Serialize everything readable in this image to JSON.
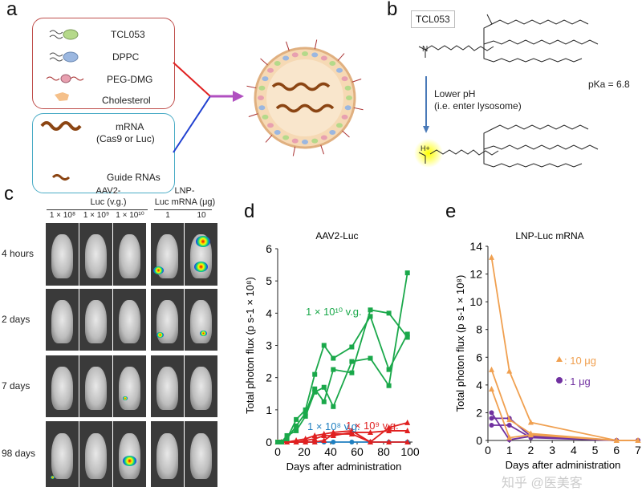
{
  "panels": {
    "a": {
      "label": "a",
      "components": [
        {
          "name": "TCL053",
          "icon": "lipid-green-icon"
        },
        {
          "name": "DPPC",
          "icon": "lipid-blue-icon"
        },
        {
          "name": "PEG-DMG",
          "icon": "lipid-pink-icon"
        },
        {
          "name": "Cholesterol",
          "icon": "cholesterol-icon"
        }
      ],
      "cargo": [
        {
          "name": "mRNA",
          "sub": "(Cas9 or Luc)"
        },
        {
          "name": "Guide RNAs"
        }
      ],
      "colors": {
        "lipid_box": "#c0504d",
        "cargo_box": "#4bacc6",
        "arrow": "#b04fc0"
      }
    },
    "b": {
      "label": "b",
      "compound": "TCL053",
      "condition_line1": "Lower pH",
      "condition_line2": "(i.e. enter lysosome)",
      "pka": "pKa = 6.8",
      "amine": "N",
      "protonated": "H+"
    },
    "c": {
      "label": "c",
      "group1_line1": "AAV2-",
      "group1_line2": "Luc (v.g.)",
      "group2_line1": "LNP-",
      "group2_line2": "Luc mRNA (μg)",
      "columns": [
        "1 × 10⁸",
        "1 × 10⁹",
        "1 × 10¹⁰",
        "1",
        "10"
      ],
      "rows": [
        "4 hours",
        "2 days",
        "7 days",
        "98 days"
      ]
    },
    "d": {
      "label": "d"
    },
    "e": {
      "label": "e"
    }
  },
  "watermark": "知乎 @医美客",
  "chart_data": [
    {
      "type": "line",
      "panel": "d",
      "title": "AAV2-Luc",
      "xlabel": "Days after administration",
      "ylabel": "Total photon flux (p s-1 × 10⁸)",
      "xlim": [
        0,
        100
      ],
      "ylim": [
        0,
        6
      ],
      "xticks": [
        0,
        20,
        40,
        60,
        80,
        100
      ],
      "yticks": [
        0,
        1,
        2,
        3,
        4,
        5,
        6
      ],
      "x": [
        0,
        3,
        7,
        14,
        21,
        28,
        35,
        42,
        56,
        70,
        84,
        98
      ],
      "groups": [
        {
          "label": "1 × 10¹⁰ v.g.",
          "color": "#1aa84a",
          "marker": "square",
          "series": [
            {
              "values": [
                0,
                0,
                0.1,
                0.7,
                1.0,
                2.1,
                3.0,
                2.6,
                2.95,
                3.9,
                2.25,
                3.35
              ]
            },
            {
              "values": [
                0,
                0,
                0.1,
                0.5,
                0.9,
                1.65,
                1.25,
                2.25,
                2.15,
                4.1,
                4.0,
                3.25
              ]
            },
            {
              "values": [
                0,
                0,
                0.2,
                0.35,
                0.8,
                1.55,
                1.7,
                1.1,
                2.5,
                2.6,
                1.75,
                5.25
              ]
            }
          ]
        },
        {
          "label": "1 × 10⁹ v.g.",
          "color": "#e02020",
          "marker": "triangle",
          "series": [
            {
              "values": [
                0,
                0,
                0,
                0.05,
                0.1,
                0.2,
                0.25,
                0.3,
                0.35,
                0,
                0.45,
                0.6
              ]
            },
            {
              "values": [
                0,
                0,
                0,
                0,
                0.05,
                0.1,
                0.2,
                0.2,
                0.3,
                0.3,
                0.35,
                0.35
              ]
            },
            {
              "values": [
                0,
                0,
                0,
                0,
                0,
                0,
                0.05,
                0.25,
                0.25,
                0,
                0,
                0
              ]
            }
          ]
        },
        {
          "label": "1 × 10⁸ v.g.",
          "color": "#1f7fc0",
          "marker": "circle",
          "series": [
            {
              "values": [
                0,
                0,
                0,
                0,
                0,
                0,
                0,
                0,
                0,
                0,
                0,
                0
              ]
            }
          ]
        }
      ]
    },
    {
      "type": "line",
      "panel": "e",
      "title": "LNP-Luc mRNA",
      "xlabel": "Days after administration",
      "ylabel": "Total photon flux (p s-1 × 10⁸)",
      "xlim": [
        0,
        7
      ],
      "ylim": [
        0,
        14
      ],
      "xticks": [
        0,
        1,
        2,
        3,
        4,
        5,
        6,
        7
      ],
      "yticks": [
        0,
        2,
        4,
        6,
        8,
        10,
        12,
        14
      ],
      "x": [
        0.17,
        1,
        2,
        6,
        7
      ],
      "groups": [
        {
          "label": ": 10 μg",
          "color": "#f0a050",
          "marker": "triangle",
          "series": [
            {
              "values": [
                13.2,
                5.0,
                1.3,
                0,
                0
              ]
            },
            {
              "values": [
                5.1,
                1.5,
                0.5,
                0,
                0
              ]
            },
            {
              "values": [
                3.7,
                0.2,
                0.4,
                0,
                0
              ]
            }
          ]
        },
        {
          "label": ": 1 μg",
          "color": "#7030a0",
          "marker": "circle",
          "series": [
            {
              "values": [
                2.0,
                0.05,
                0.3,
                0,
                0
              ]
            },
            {
              "values": [
                1.6,
                1.6,
                0.3,
                0,
                0
              ]
            },
            {
              "values": [
                1.1,
                1.1,
                0.2,
                0,
                0
              ]
            }
          ]
        }
      ]
    }
  ]
}
